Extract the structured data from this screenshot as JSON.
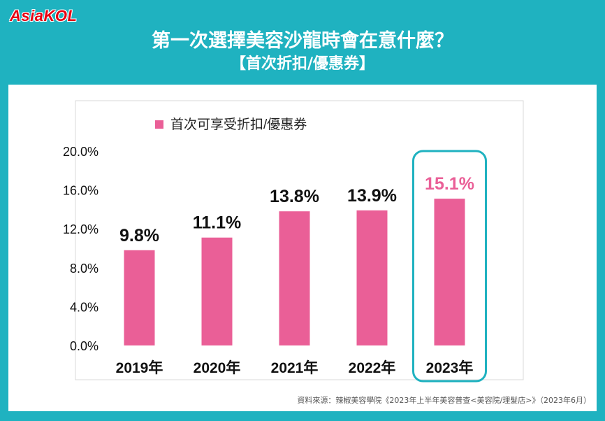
{
  "header": {
    "logo": "AsiaKOL",
    "title": "第一次選擇美容沙龍時會在意什麼？",
    "subtitle": "【首次折扣/優惠券】"
  },
  "source": "資料來源：辣椒美容學院《2023年上半年美容普查<美容院/理髮店>》（2023年6月）",
  "colors": {
    "background": "#1fb2c0",
    "bar": "#ea5f97",
    "highlight_label": "#ea5f97",
    "highlight_box": "#1fb2c0"
  },
  "chart_data": {
    "type": "bar",
    "categories": [
      "2019年",
      "2020年",
      "2021年",
      "2022年",
      "2023年"
    ],
    "series": [
      {
        "name": "首次可享受折扣/優惠券",
        "values": [
          9.8,
          11.1,
          13.8,
          13.9,
          15.1
        ]
      }
    ],
    "data_labels": [
      "9.8%",
      "11.1%",
      "13.8%",
      "13.9%",
      "15.1%"
    ],
    "ylim": [
      0,
      20
    ],
    "yticks": [
      "0.0%",
      "4.0%",
      "8.0%",
      "12.0%",
      "16.0%",
      "20.0%"
    ],
    "highlight_index": 4,
    "legend": "top-left",
    "grid": false
  }
}
